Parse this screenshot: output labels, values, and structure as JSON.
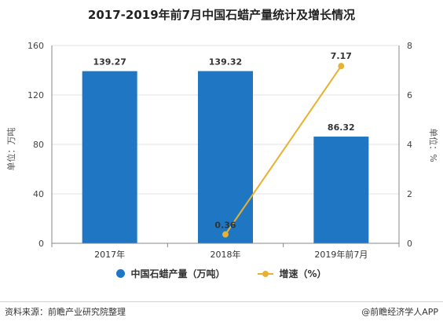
{
  "title": "2017-2019年前7月中国石蜡产量统计及增长情况",
  "chart_data": {
    "type": "bar",
    "categories": [
      "2017年",
      "2018年",
      "2019年前7月"
    ],
    "series": [
      {
        "name": "中国石蜡产量（万吨）",
        "type": "bar",
        "axis": "left",
        "values": [
          139.27,
          139.32,
          86.32
        ],
        "labels": [
          "139.27",
          "139.32",
          "86.32"
        ],
        "color": "#1f77c4"
      },
      {
        "name": "增速（%）",
        "type": "line",
        "axis": "right",
        "values": [
          null,
          0.36,
          7.17
        ],
        "labels": [
          "",
          "0.36",
          "7.17"
        ],
        "color": "#e8b130"
      }
    ],
    "y_left": {
      "label": "单位：万吨",
      "min": 0,
      "max": 160,
      "ticks": [
        "0",
        "40",
        "80",
        "120",
        "160"
      ]
    },
    "y_right": {
      "label": "单位：%",
      "min": 0,
      "max": 8,
      "ticks": [
        "0",
        "2",
        "4",
        "6",
        "8"
      ]
    },
    "grid": true,
    "legend_position": "bottom"
  },
  "legend": {
    "bar_label": "中国石蜡产量（万吨）",
    "line_label": "增速（%）"
  },
  "footer": {
    "source": "资料来源：前瞻产业研究院整理",
    "credit": "@前瞻经济学人APP"
  }
}
